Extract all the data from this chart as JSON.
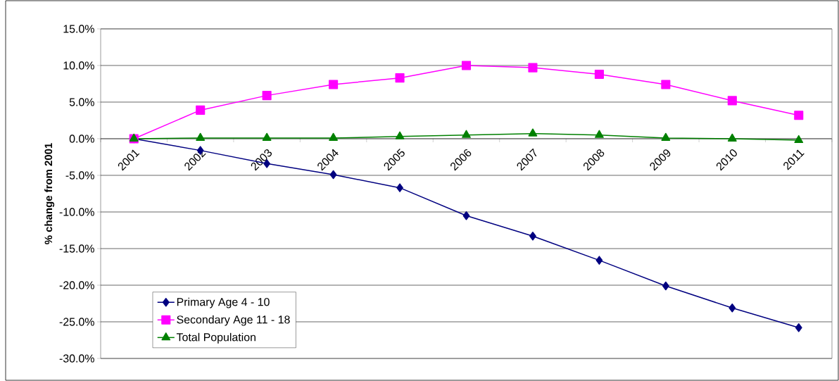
{
  "chart_data": {
    "type": "line",
    "ylabel": "% change from 2001",
    "categories": [
      "2001",
      "2002",
      "2003",
      "2004",
      "2005",
      "2006",
      "2007",
      "2008",
      "2009",
      "2010",
      "2011"
    ],
    "series": [
      {
        "name": "Primary Age 4 - 10",
        "color": "#000080",
        "marker": "diamond",
        "values": [
          0,
          -1.6,
          -3.4,
          -4.9,
          -6.7,
          -10.5,
          -13.3,
          -16.6,
          -20.1,
          -23.1,
          -25.8
        ]
      },
      {
        "name": "Secondary Age 11 - 18",
        "color": "#ff00ff",
        "marker": "square",
        "values": [
          0,
          3.9,
          5.9,
          7.4,
          8.3,
          10.0,
          9.7,
          8.8,
          7.4,
          5.2,
          3.2
        ]
      },
      {
        "name": "Total Population",
        "color": "#008000",
        "marker": "triangle",
        "values": [
          0,
          0.1,
          0.1,
          0.1,
          0.3,
          0.5,
          0.7,
          0.5,
          0.1,
          0.0,
          -0.2
        ]
      }
    ],
    "ylim": [
      -30,
      15
    ],
    "yticks": [
      {
        "value": -30,
        "label": "-30.0%"
      },
      {
        "value": -25,
        "label": "-25.0%"
      },
      {
        "value": -20,
        "label": "-20.0%"
      },
      {
        "value": -15,
        "label": "-15.0%"
      },
      {
        "value": -10,
        "label": "-10.0%"
      },
      {
        "value": -5,
        "label": "-5.0%"
      },
      {
        "value": 0,
        "label": "0.0%"
      },
      {
        "value": 5,
        "label": "5.0%"
      },
      {
        "value": 10,
        "label": "10.0%"
      },
      {
        "value": 15,
        "label": "15.0%"
      }
    ],
    "grid": "y",
    "legend": "bottom left",
    "line_style": "solid"
  }
}
